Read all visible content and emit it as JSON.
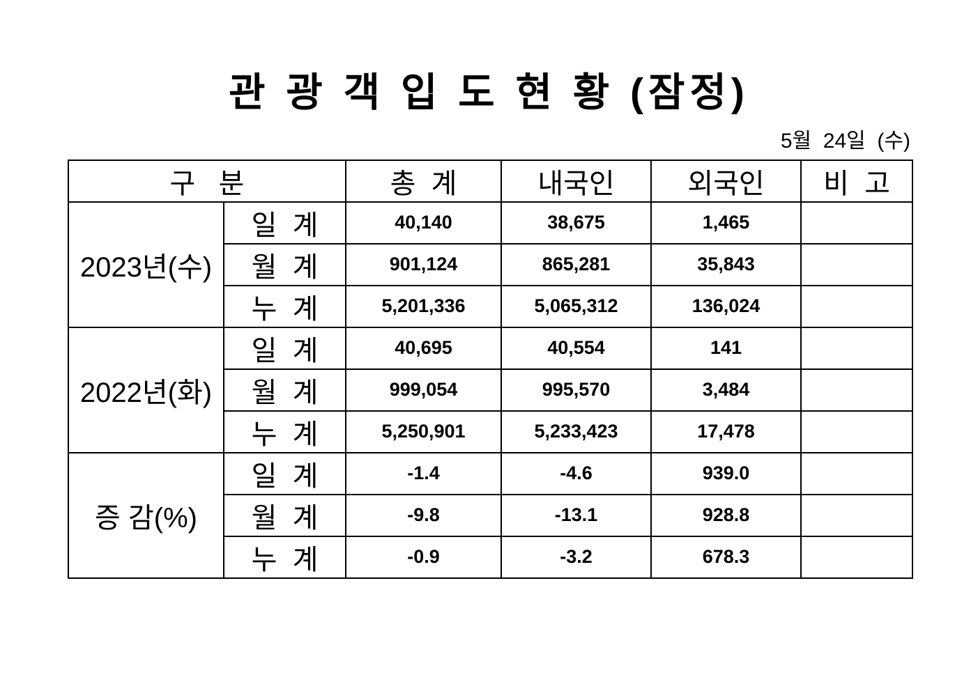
{
  "page": {
    "title": "관 광 객 입 도 현 황 (잠정)",
    "date": "5월  24일  (수)"
  },
  "colors": {
    "text": "#000000",
    "background": "#ffffff",
    "border": "#000000"
  },
  "table": {
    "headers": {
      "category": "구   분",
      "total": "총  계",
      "domestic": "내국인",
      "foreign": "외국인",
      "remarks": "비  고"
    },
    "groups": [
      {
        "label": "2023년(수)",
        "rows": [
          {
            "sub": "일  계",
            "total": "40,140",
            "domestic": "38,675",
            "foreign": "1,465",
            "remarks": ""
          },
          {
            "sub": "월  계",
            "total": "901,124",
            "domestic": "865,281",
            "foreign": "35,843",
            "remarks": ""
          },
          {
            "sub": "누  계",
            "total": "5,201,336",
            "domestic": "5,065,312",
            "foreign": "136,024",
            "remarks": ""
          }
        ]
      },
      {
        "label": "2022년(화)",
        "rows": [
          {
            "sub": "일  계",
            "total": "40,695",
            "domestic": "40,554",
            "foreign": "141",
            "remarks": ""
          },
          {
            "sub": "월  계",
            "total": "999,054",
            "domestic": "995,570",
            "foreign": "3,484",
            "remarks": ""
          },
          {
            "sub": "누  계",
            "total": "5,250,901",
            "domestic": "5,233,423",
            "foreign": "17,478",
            "remarks": ""
          }
        ]
      },
      {
        "label": "증 감(%)",
        "rows": [
          {
            "sub": "일  계",
            "total": "-1.4",
            "domestic": "-4.6",
            "foreign": "939.0",
            "remarks": ""
          },
          {
            "sub": "월  계",
            "total": "-9.8",
            "domestic": "-13.1",
            "foreign": "928.8",
            "remarks": ""
          },
          {
            "sub": "누  계",
            "total": "-0.9",
            "domestic": "-3.2",
            "foreign": "678.3",
            "remarks": ""
          }
        ]
      }
    ]
  }
}
